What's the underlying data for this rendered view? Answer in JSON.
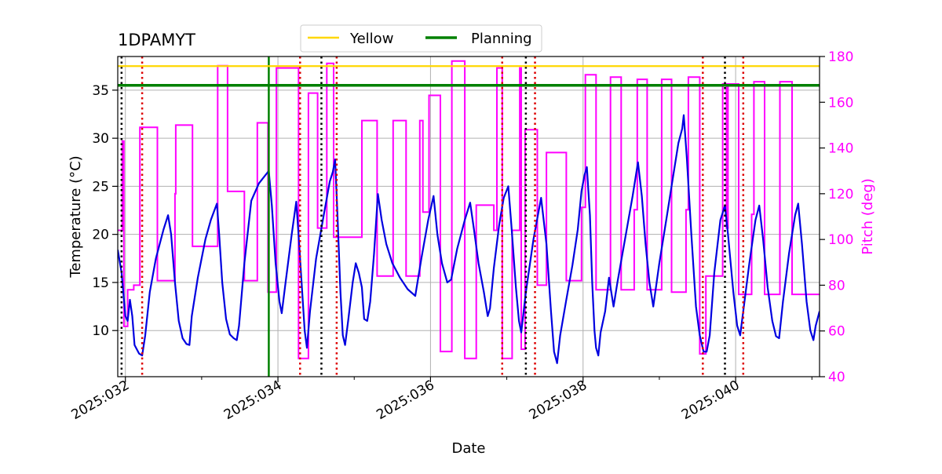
{
  "chart_data": {
    "type": "line",
    "title": "1DPAMYT",
    "xlabel": "Date",
    "ylabel_left": "Temperature ($^\\circ$C)",
    "ylabel_left_display": "Temperature (°C)",
    "ylabel_right": "Pitch (deg)",
    "xlim": [
      31.9,
      41.1
    ],
    "ylim_left": [
      5.2,
      38.5
    ],
    "ylim_right": [
      40,
      180
    ],
    "x_ticks": [
      {
        "value": 32,
        "label": "2025:032"
      },
      {
        "value": 34,
        "label": "2025:034"
      },
      {
        "value": 36,
        "label": "2025:036"
      },
      {
        "value": 38,
        "label": "2025:038"
      },
      {
        "value": 40,
        "label": "2025:040"
      }
    ],
    "x_minor_ticks": [
      33,
      35,
      37,
      39,
      41
    ],
    "y_left_ticks": [
      10,
      15,
      20,
      25,
      30,
      35
    ],
    "y_right_ticks": [
      40,
      60,
      80,
      100,
      120,
      140,
      160,
      180
    ],
    "grid": true,
    "legend": {
      "placement": "top-center",
      "entries": [
        {
          "label": "Yellow",
          "color": "#ffd700"
        },
        {
          "label": "Planning",
          "color": "#008000"
        }
      ]
    },
    "colors": {
      "temperature": "#0000e0",
      "pitch": "#ff00ff",
      "yellow": "#ffd700",
      "planning": "#008000",
      "black_markers": "#000000",
      "red_markers": "#dd0000",
      "right_axis": "#ff00ff"
    },
    "horizontal_limits": [
      {
        "name": "Yellow",
        "value": 37.5
      },
      {
        "name": "Planning",
        "value": 35.5
      }
    ],
    "planning_vertical_x": 33.88,
    "black_dotted_x": [
      31.95,
      34.57,
      37.25,
      39.86
    ],
    "red_dotted_x": [
      32.22,
      34.29,
      34.77,
      36.94,
      37.37,
      39.57,
      40.1
    ],
    "series": [
      {
        "name": "Temperature",
        "axis": "left",
        "points": [
          [
            31.9,
            18.4
          ],
          [
            31.95,
            16
          ],
          [
            32.0,
            11.5
          ],
          [
            32.03,
            11
          ],
          [
            32.06,
            13.2
          ],
          [
            32.09,
            11.5
          ],
          [
            32.12,
            8.5
          ],
          [
            32.18,
            7.6
          ],
          [
            32.22,
            7.4
          ],
          [
            32.26,
            9.5
          ],
          [
            32.32,
            14
          ],
          [
            32.4,
            17.5
          ],
          [
            32.5,
            20.5
          ],
          [
            32.56,
            22
          ],
          [
            32.6,
            20
          ],
          [
            32.65,
            15
          ],
          [
            32.7,
            11
          ],
          [
            32.75,
            9.2
          ],
          [
            32.8,
            8.6
          ],
          [
            32.84,
            8.5
          ],
          [
            32.87,
            11.5
          ],
          [
            32.95,
            15.5
          ],
          [
            33.05,
            19.5
          ],
          [
            33.12,
            21.5
          ],
          [
            33.2,
            23.2
          ],
          [
            33.23,
            20
          ],
          [
            33.27,
            15
          ],
          [
            33.32,
            11.2
          ],
          [
            33.37,
            9.6
          ],
          [
            33.42,
            9.2
          ],
          [
            33.46,
            9.0
          ],
          [
            33.49,
            10.5
          ],
          [
            33.56,
            17
          ],
          [
            33.65,
            23.5
          ],
          [
            33.75,
            25.3
          ],
          [
            33.83,
            26.1
          ],
          [
            33.88,
            26.6
          ],
          [
            33.92,
            23
          ],
          [
            33.97,
            17
          ],
          [
            34.02,
            13
          ],
          [
            34.05,
            11.8
          ],
          [
            34.1,
            15
          ],
          [
            34.18,
            20
          ],
          [
            34.24,
            23.4
          ],
          [
            34.27,
            20
          ],
          [
            34.31,
            15
          ],
          [
            34.35,
            10
          ],
          [
            34.38,
            8.2
          ],
          [
            34.42,
            12
          ],
          [
            34.5,
            17.5
          ],
          [
            34.6,
            22
          ],
          [
            34.68,
            25.5
          ],
          [
            34.72,
            26.5
          ],
          [
            34.75,
            27.8
          ],
          [
            34.78,
            22
          ],
          [
            34.82,
            14
          ],
          [
            34.85,
            9.5
          ],
          [
            34.88,
            8.5
          ],
          [
            34.92,
            11
          ],
          [
            34.98,
            15
          ],
          [
            35.02,
            17
          ],
          [
            35.06,
            16
          ],
          [
            35.1,
            14.5
          ],
          [
            35.13,
            11.2
          ],
          [
            35.17,
            11
          ],
          [
            35.21,
            13
          ],
          [
            35.26,
            18
          ],
          [
            35.31,
            24.2
          ],
          [
            35.36,
            21.5
          ],
          [
            35.42,
            19
          ],
          [
            35.5,
            17
          ],
          [
            35.6,
            15.5
          ],
          [
            35.7,
            14.3
          ],
          [
            35.8,
            13.6
          ],
          [
            35.88,
            17.5
          ],
          [
            35.97,
            21.5
          ],
          [
            36.04,
            24
          ],
          [
            36.09,
            20
          ],
          [
            36.15,
            17
          ],
          [
            36.22,
            15
          ],
          [
            36.27,
            15.3
          ],
          [
            36.35,
            18.5
          ],
          [
            36.45,
            21.5
          ],
          [
            36.52,
            23.3
          ],
          [
            36.57,
            20.5
          ],
          [
            36.63,
            17
          ],
          [
            36.7,
            14
          ],
          [
            36.75,
            11.5
          ],
          [
            36.78,
            12.3
          ],
          [
            36.83,
            16.5
          ],
          [
            36.9,
            21
          ],
          [
            36.96,
            23.8
          ],
          [
            37.02,
            25
          ],
          [
            37.06,
            21
          ],
          [
            37.12,
            14.5
          ],
          [
            37.16,
            11
          ],
          [
            37.19,
            9.8
          ],
          [
            37.25,
            14
          ],
          [
            37.35,
            19.5
          ],
          [
            37.45,
            23.8
          ],
          [
            37.52,
            19
          ],
          [
            37.58,
            12
          ],
          [
            37.62,
            7.8
          ],
          [
            37.66,
            6.6
          ],
          [
            37.7,
            9.5
          ],
          [
            37.78,
            13.2
          ],
          [
            37.86,
            16.8
          ],
          [
            37.93,
            20.5
          ],
          [
            37.98,
            24.5
          ],
          [
            38.02,
            26.2
          ],
          [
            38.05,
            27
          ],
          [
            38.09,
            22
          ],
          [
            38.12,
            15
          ],
          [
            38.15,
            10
          ],
          [
            38.17,
            8.2
          ],
          [
            38.2,
            7.4
          ],
          [
            38.23,
            9.8
          ],
          [
            38.29,
            12
          ],
          [
            38.34,
            15.5
          ],
          [
            38.4,
            12.5
          ],
          [
            38.45,
            15
          ],
          [
            38.55,
            19.5
          ],
          [
            38.65,
            24
          ],
          [
            38.72,
            27.5
          ],
          [
            38.77,
            24
          ],
          [
            38.82,
            19
          ],
          [
            38.87,
            15
          ],
          [
            38.92,
            12.5
          ],
          [
            39.0,
            17
          ],
          [
            39.1,
            22
          ],
          [
            39.18,
            26
          ],
          [
            39.25,
            29.5
          ],
          [
            39.3,
            31
          ],
          [
            39.32,
            32.4
          ],
          [
            39.36,
            28
          ],
          [
            39.42,
            20
          ],
          [
            39.48,
            12.5
          ],
          [
            39.53,
            9.5
          ],
          [
            39.58,
            7.8
          ],
          [
            39.62,
            7.8
          ],
          [
            39.66,
            9.5
          ],
          [
            39.72,
            16
          ],
          [
            39.8,
            21.5
          ],
          [
            39.86,
            23
          ],
          [
            39.9,
            20
          ],
          [
            39.97,
            14
          ],
          [
            40.02,
            10.5
          ],
          [
            40.06,
            9.5
          ],
          [
            40.1,
            12
          ],
          [
            40.18,
            17
          ],
          [
            40.26,
            21.5
          ],
          [
            40.31,
            23
          ],
          [
            40.36,
            19.5
          ],
          [
            40.42,
            14.5
          ],
          [
            40.48,
            11
          ],
          [
            40.53,
            9.4
          ],
          [
            40.57,
            9.2
          ],
          [
            40.62,
            13
          ],
          [
            40.7,
            18
          ],
          [
            40.78,
            22
          ],
          [
            40.82,
            23.2
          ],
          [
            40.87,
            19
          ],
          [
            40.93,
            13
          ],
          [
            40.98,
            10
          ],
          [
            41.02,
            9
          ],
          [
            41.05,
            10.5
          ],
          [
            41.1,
            12
          ]
        ]
      },
      {
        "name": "Pitch",
        "axis": "right",
        "points": [
          [
            31.9,
            104
          ],
          [
            31.96,
            104
          ],
          [
            31.96,
            143
          ],
          [
            31.98,
            143
          ],
          [
            31.98,
            62
          ],
          [
            32.03,
            62
          ],
          [
            32.03,
            78
          ],
          [
            32.11,
            78
          ],
          [
            32.11,
            80
          ],
          [
            32.19,
            80
          ],
          [
            32.19,
            149
          ],
          [
            32.42,
            149
          ],
          [
            32.42,
            82
          ],
          [
            32.65,
            82
          ],
          [
            32.65,
            120
          ],
          [
            32.66,
            120
          ],
          [
            32.66,
            150
          ],
          [
            32.88,
            150
          ],
          [
            32.88,
            97
          ],
          [
            33.21,
            97
          ],
          [
            33.21,
            176
          ],
          [
            33.34,
            176
          ],
          [
            33.34,
            121
          ],
          [
            33.56,
            121
          ],
          [
            33.56,
            82
          ],
          [
            33.73,
            82
          ],
          [
            33.73,
            151
          ],
          [
            33.87,
            151
          ],
          [
            33.87,
            77
          ],
          [
            33.98,
            77
          ],
          [
            33.98,
            175
          ],
          [
            34.27,
            175
          ],
          [
            34.27,
            48
          ],
          [
            34.4,
            48
          ],
          [
            34.4,
            164
          ],
          [
            34.52,
            164
          ],
          [
            34.52,
            105
          ],
          [
            34.64,
            105
          ],
          [
            34.64,
            177
          ],
          [
            34.73,
            177
          ],
          [
            34.73,
            101
          ],
          [
            35.1,
            101
          ],
          [
            35.1,
            152
          ],
          [
            35.3,
            152
          ],
          [
            35.3,
            84
          ],
          [
            35.51,
            84
          ],
          [
            35.51,
            152
          ],
          [
            35.68,
            152
          ],
          [
            35.68,
            84
          ],
          [
            35.86,
            84
          ],
          [
            35.86,
            152
          ],
          [
            35.9,
            152
          ],
          [
            35.9,
            112
          ],
          [
            35.98,
            112
          ],
          [
            35.98,
            163
          ],
          [
            36.13,
            163
          ],
          [
            36.13,
            51
          ],
          [
            36.28,
            51
          ],
          [
            36.28,
            178
          ],
          [
            36.45,
            178
          ],
          [
            36.45,
            48
          ],
          [
            36.6,
            48
          ],
          [
            36.6,
            115
          ],
          [
            36.83,
            115
          ],
          [
            36.83,
            104
          ],
          [
            36.87,
            104
          ],
          [
            36.87,
            175
          ],
          [
            36.94,
            175
          ],
          [
            36.94,
            48
          ],
          [
            37.07,
            48
          ],
          [
            37.07,
            104
          ],
          [
            37.17,
            104
          ],
          [
            37.17,
            175
          ],
          [
            37.19,
            175
          ],
          [
            37.19,
            52
          ],
          [
            37.24,
            52
          ],
          [
            37.24,
            148
          ],
          [
            37.4,
            148
          ],
          [
            37.4,
            80
          ],
          [
            37.52,
            80
          ],
          [
            37.52,
            138
          ],
          [
            37.78,
            138
          ],
          [
            37.78,
            82
          ],
          [
            37.98,
            82
          ],
          [
            37.98,
            114
          ],
          [
            38.03,
            114
          ],
          [
            38.03,
            172
          ],
          [
            38.17,
            172
          ],
          [
            38.17,
            78
          ],
          [
            38.36,
            78
          ],
          [
            38.36,
            171
          ],
          [
            38.5,
            171
          ],
          [
            38.5,
            78
          ],
          [
            38.67,
            78
          ],
          [
            38.67,
            113
          ],
          [
            38.71,
            113
          ],
          [
            38.71,
            170
          ],
          [
            38.84,
            170
          ],
          [
            38.84,
            78
          ],
          [
            39.03,
            78
          ],
          [
            39.03,
            170
          ],
          [
            39.16,
            170
          ],
          [
            39.16,
            77
          ],
          [
            39.35,
            77
          ],
          [
            39.35,
            113
          ],
          [
            39.38,
            113
          ],
          [
            39.38,
            171
          ],
          [
            39.53,
            171
          ],
          [
            39.53,
            50
          ],
          [
            39.61,
            50
          ],
          [
            39.61,
            84
          ],
          [
            39.83,
            84
          ],
          [
            39.83,
            168
          ],
          [
            39.88,
            168
          ],
          [
            39.88,
            105
          ],
          [
            39.9,
            105
          ],
          [
            39.9,
            168
          ],
          [
            40.04,
            168
          ],
          [
            40.04,
            76
          ],
          [
            40.21,
            76
          ],
          [
            40.21,
            111
          ],
          [
            40.24,
            111
          ],
          [
            40.24,
            169
          ],
          [
            40.38,
            169
          ],
          [
            40.38,
            76
          ],
          [
            40.58,
            76
          ],
          [
            40.58,
            169
          ],
          [
            40.74,
            169
          ],
          [
            40.74,
            76
          ],
          [
            41.1,
            76
          ]
        ]
      }
    ]
  }
}
